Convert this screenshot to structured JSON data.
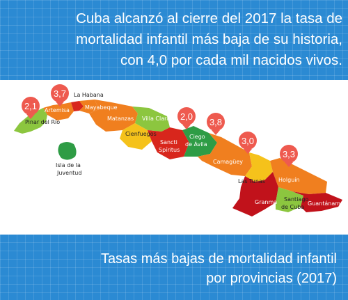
{
  "headline": {
    "line1": "Cuba alcanzó al cierre del 2017 la tasa de",
    "line2": "mortalidad infantil más baja de su historia,",
    "line3": "con 4,0 por cada mil nacidos vivos."
  },
  "footer": {
    "line1": "Tasas más bajas de mortalidad infantil",
    "line2": "por provincias (2017)"
  },
  "colors": {
    "background": "#2b8ad3",
    "pin": "#ee5a4f",
    "light_green": "#8cc63f",
    "dark_green": "#2e9c45",
    "orange": "#f07f1f",
    "red": "#d8261c",
    "yellow": "#f5c21b",
    "dark_red": "#c1121b"
  },
  "provinces": [
    {
      "name": "Pinar del Río",
      "color": "light_green"
    },
    {
      "name": "Artemisa",
      "color": "orange"
    },
    {
      "name": "La Habana",
      "color": "red"
    },
    {
      "name": "Mayabeque",
      "color": "orange"
    },
    {
      "name": "Matanzas",
      "color": "orange"
    },
    {
      "name": "Villa Clara",
      "color": "light_green"
    },
    {
      "name": "Cienfuegos",
      "color": "yellow"
    },
    {
      "name": "Sancti Spíritus",
      "color": "red"
    },
    {
      "name": "Ciego de Ávila",
      "color": "dark_green"
    },
    {
      "name": "Camagüey",
      "color": "orange"
    },
    {
      "name": "Las Tunas",
      "color": "yellow"
    },
    {
      "name": "Holguín",
      "color": "orange"
    },
    {
      "name": "Granma",
      "color": "dark_red"
    },
    {
      "name": "Santiago de Cuba",
      "color": "light_green"
    },
    {
      "name": "Guantánamo",
      "color": "dark_red"
    },
    {
      "name": "Isla de la Juventud",
      "color": "dark_green"
    }
  ],
  "pins": [
    {
      "province": "Pinar del Río",
      "value": "2,1"
    },
    {
      "province": "Artemisa",
      "value": "3,7"
    },
    {
      "province": "Sancti Spíritus",
      "value": "2,0"
    },
    {
      "province": "Ciego de Ávila",
      "value": "3,8"
    },
    {
      "province": "Camagüey",
      "value": "3,0"
    },
    {
      "province": "Holguín",
      "value": "3,3"
    }
  ]
}
